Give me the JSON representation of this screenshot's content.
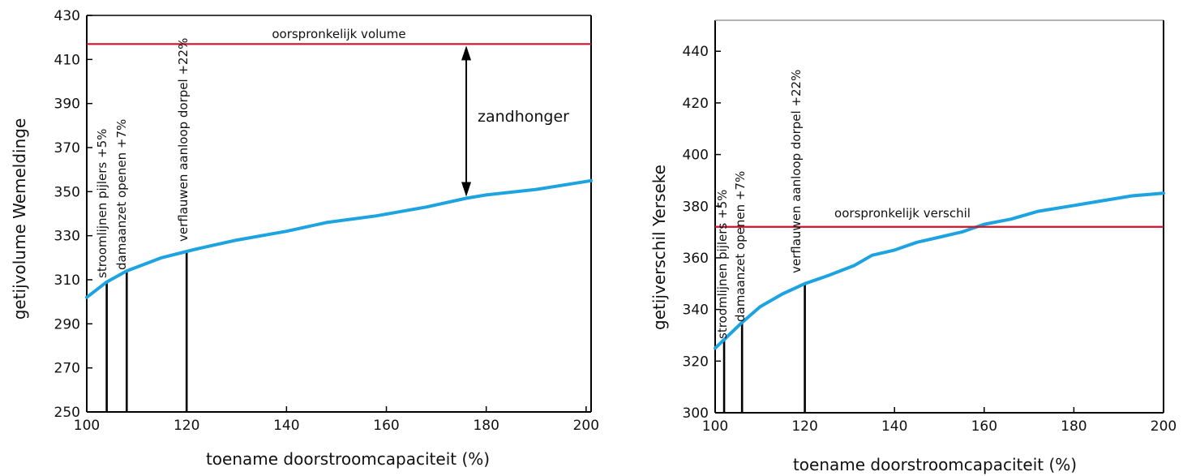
{
  "chart_data": [
    {
      "type": "line",
      "xlabel": "toename doorstroomcapaciteit (%)",
      "ylabel": "getijvolume Wemeldinge",
      "xlim": [
        100,
        201
      ],
      "ylim": [
        250,
        430
      ],
      "xticks": [
        100,
        120,
        140,
        160,
        180,
        200
      ],
      "yticks": [
        250,
        270,
        290,
        310,
        330,
        350,
        370,
        390,
        410,
        430
      ],
      "grid": false,
      "colors": {
        "series": "#1ca3e0",
        "reference": "#d0102a",
        "markers": "#000000"
      },
      "series": [
        {
          "x": [
            100,
            104,
            108,
            115,
            122,
            130,
            140,
            148,
            158,
            168,
            176,
            180,
            190,
            201
          ],
          "y": [
            302,
            309,
            314,
            320,
            324,
            328,
            332,
            336,
            339,
            343,
            347,
            348.5,
            351,
            355
          ]
        }
      ],
      "reference_line": {
        "y": 417,
        "label": "oorspronkelijk volume"
      },
      "annotations": [
        {
          "x": 104,
          "label": "stroomlijnen pijlers +5%"
        },
        {
          "x": 108,
          "label": "damaanzet openen +7%"
        },
        {
          "x": 120,
          "label": "verflauwen aanloop dorpel +22%"
        }
      ],
      "arrow": {
        "x": 176,
        "label": "zandhonger"
      }
    },
    {
      "type": "line",
      "xlabel": "toename doorstroomcapaciteit (%)",
      "ylabel": "getijverschil Yerseke",
      "xlim": [
        100,
        200
      ],
      "ylim": [
        300,
        452
      ],
      "xticks": [
        100,
        120,
        140,
        160,
        180,
        200
      ],
      "yticks": [
        300,
        320,
        340,
        360,
        380,
        400,
        420,
        440
      ],
      "grid": false,
      "colors": {
        "series": "#1ca3e0",
        "reference": "#d0102a",
        "markers": "#000000"
      },
      "series": [
        {
          "x": [
            100,
            103,
            106,
            110,
            115,
            120,
            125,
            128,
            131,
            135,
            140,
            145,
            150,
            155,
            160,
            166,
            172,
            179,
            186,
            193,
            200
          ],
          "y": [
            325,
            330,
            335,
            341,
            346,
            350,
            353,
            355,
            357,
            361,
            363,
            366,
            368,
            370,
            373,
            375,
            378,
            380,
            382,
            384,
            385
          ]
        }
      ],
      "reference_line": {
        "y": 372,
        "label": "oorspronkelijk verschil"
      },
      "annotations": [
        {
          "x": 102,
          "label": "stroomlijnen pijlers +5%"
        },
        {
          "x": 106,
          "label": "damaanzet openen +7%"
        },
        {
          "x": 120,
          "label": "verflauwen aanloop dorpel +22%"
        }
      ]
    }
  ]
}
